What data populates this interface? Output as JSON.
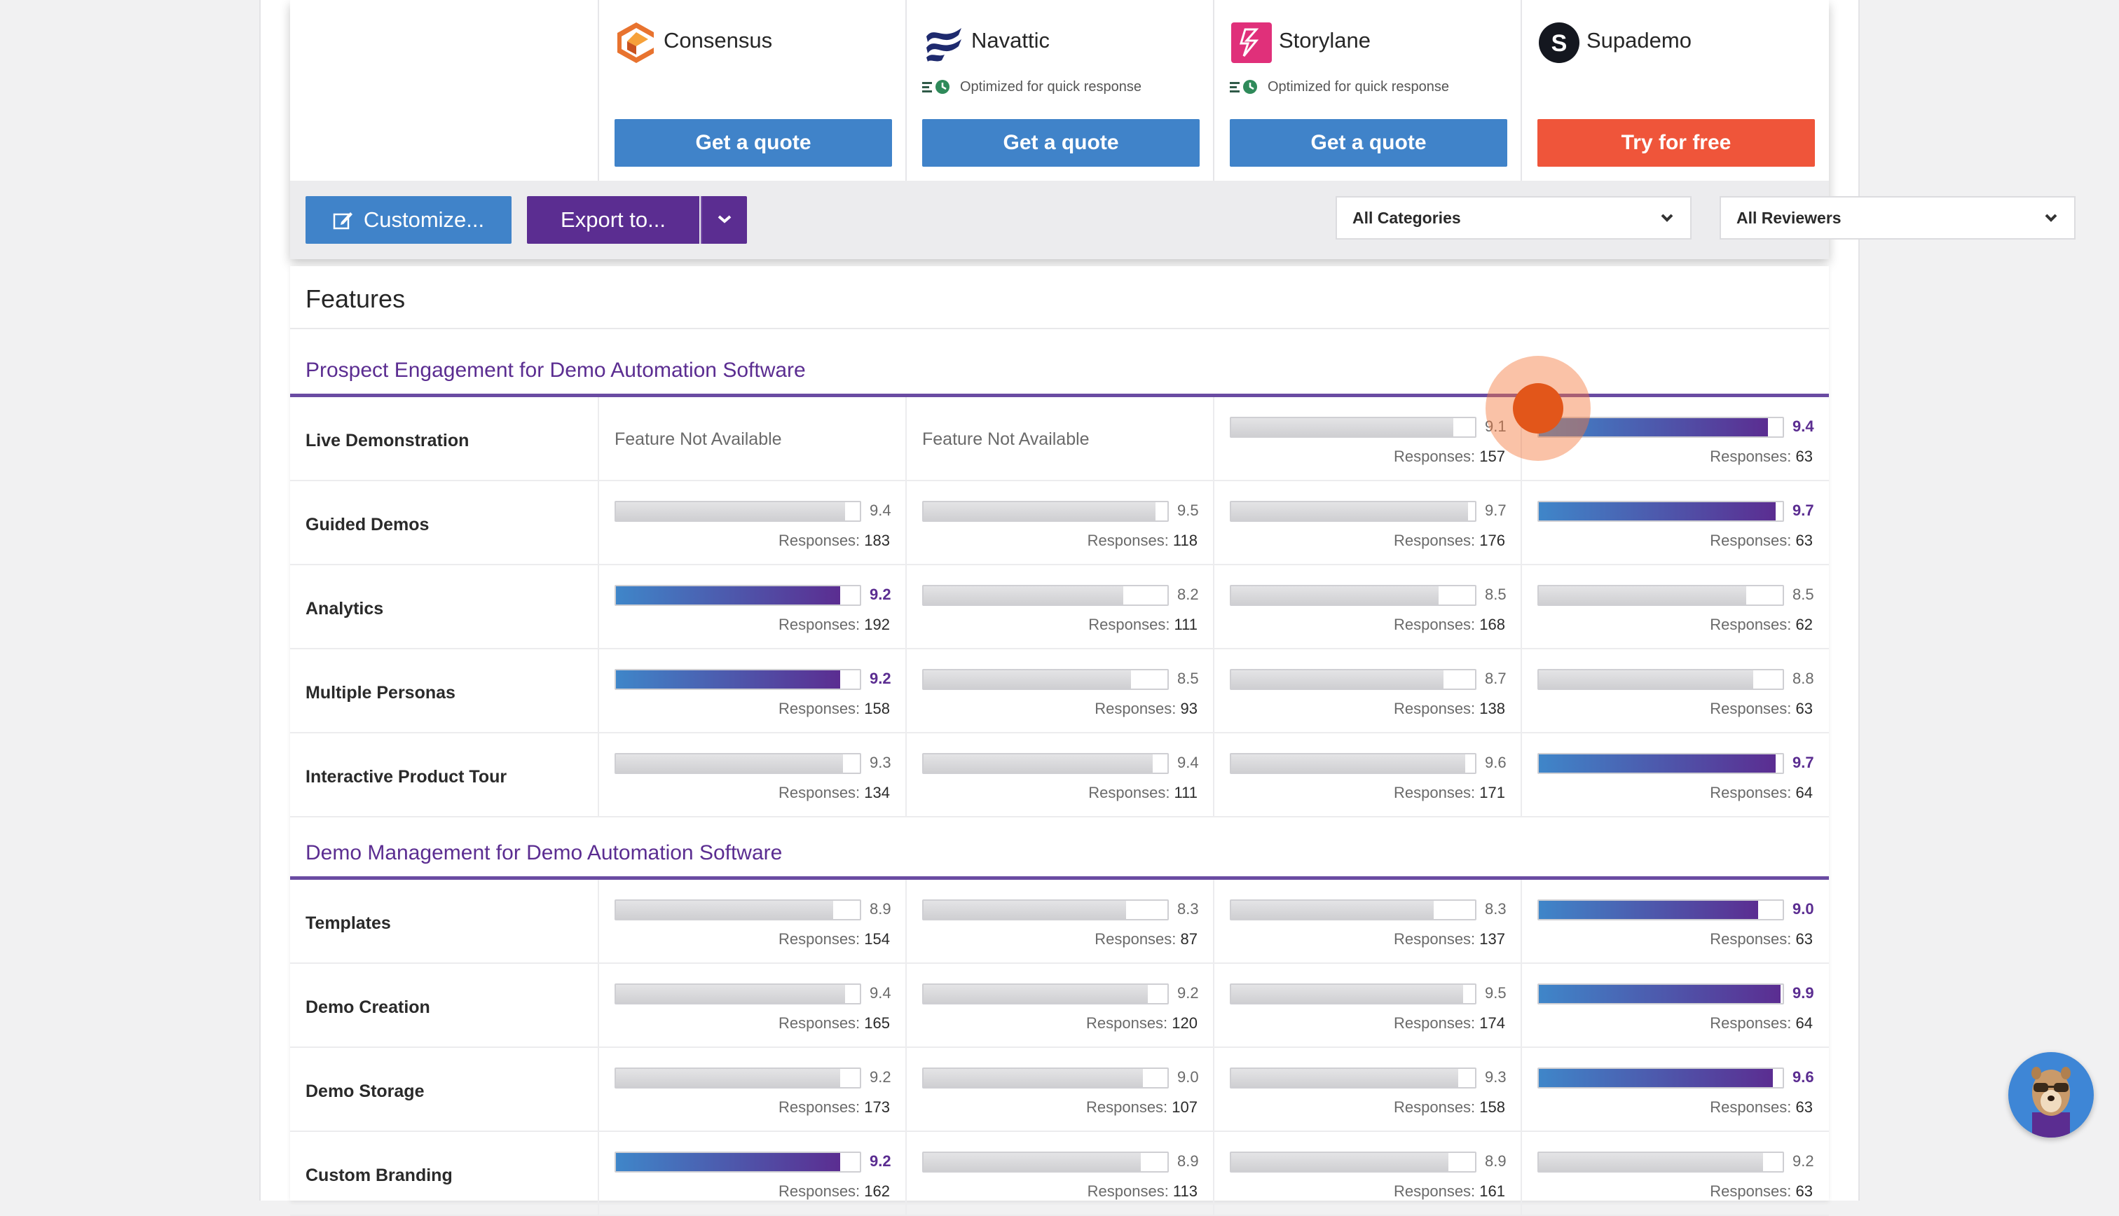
{
  "vendors": [
    {
      "name": "Consensus",
      "logo_icon": "consensus-logo-icon",
      "quick_response": "",
      "cta_label": "Get a quote",
      "cta_style": "quote"
    },
    {
      "name": "Navattic",
      "logo_icon": "navattic-logo-icon",
      "quick_response": "Optimized for quick response",
      "cta_label": "Get a quote",
      "cta_style": "quote"
    },
    {
      "name": "Storylane",
      "logo_icon": "storylane-logo-icon",
      "quick_response": "Optimized for quick response",
      "cta_label": "Get a quote",
      "cta_style": "quote"
    },
    {
      "name": "Supademo",
      "logo_icon": "supademo-logo-icon",
      "quick_response": "",
      "cta_label": "Try for free",
      "cta_style": "free"
    }
  ],
  "toolbar": {
    "customize_label": "Customize...",
    "export_label": "Export to...",
    "categories_select": "All Categories",
    "reviewers_select": "All Reviewers"
  },
  "features": {
    "title": "Features",
    "not_available_label": "Feature Not Available",
    "responses_label": "Responses:",
    "sections": [
      {
        "title": "Prospect Engagement for Demo Automation Software",
        "rows": [
          {
            "name": "Live Demonstration",
            "cells": [
              null,
              null,
              {
                "score": "9.1",
                "responses": "157"
              },
              {
                "score": "9.4",
                "responses": "63",
                "best": true
              }
            ]
          },
          {
            "name": "Guided Demos",
            "cells": [
              {
                "score": "9.4",
                "responses": "183"
              },
              {
                "score": "9.5",
                "responses": "118"
              },
              {
                "score": "9.7",
                "responses": "176"
              },
              {
                "score": "9.7",
                "responses": "63",
                "best": true
              }
            ]
          },
          {
            "name": "Analytics",
            "cells": [
              {
                "score": "9.2",
                "responses": "192",
                "best": true
              },
              {
                "score": "8.2",
                "responses": "111"
              },
              {
                "score": "8.5",
                "responses": "168"
              },
              {
                "score": "8.5",
                "responses": "62"
              }
            ]
          },
          {
            "name": "Multiple Personas",
            "cells": [
              {
                "score": "9.2",
                "responses": "158",
                "best": true
              },
              {
                "score": "8.5",
                "responses": "93"
              },
              {
                "score": "8.7",
                "responses": "138"
              },
              {
                "score": "8.8",
                "responses": "63"
              }
            ]
          },
          {
            "name": "Interactive Product Tour",
            "cells": [
              {
                "score": "9.3",
                "responses": "134"
              },
              {
                "score": "9.4",
                "responses": "111"
              },
              {
                "score": "9.6",
                "responses": "171"
              },
              {
                "score": "9.7",
                "responses": "64",
                "best": true
              }
            ]
          }
        ]
      },
      {
        "title": "Demo Management for Demo Automation Software",
        "rows": [
          {
            "name": "Templates",
            "cells": [
              {
                "score": "8.9",
                "responses": "154"
              },
              {
                "score": "8.3",
                "responses": "87"
              },
              {
                "score": "8.3",
                "responses": "137"
              },
              {
                "score": "9.0",
                "responses": "63",
                "best": true
              }
            ]
          },
          {
            "name": "Demo Creation",
            "cells": [
              {
                "score": "9.4",
                "responses": "165"
              },
              {
                "score": "9.2",
                "responses": "120"
              },
              {
                "score": "9.5",
                "responses": "174"
              },
              {
                "score": "9.9",
                "responses": "64",
                "best": true
              }
            ]
          },
          {
            "name": "Demo Storage",
            "cells": [
              {
                "score": "9.2",
                "responses": "173"
              },
              {
                "score": "9.0",
                "responses": "107"
              },
              {
                "score": "9.3",
                "responses": "158"
              },
              {
                "score": "9.6",
                "responses": "63",
                "best": true
              }
            ]
          },
          {
            "name": "Custom Branding",
            "cells": [
              {
                "score": "9.2",
                "responses": "162",
                "best": true
              },
              {
                "score": "8.9",
                "responses": "113"
              },
              {
                "score": "8.9",
                "responses": "161"
              },
              {
                "score": "9.2",
                "responses": "63"
              }
            ]
          }
        ]
      }
    ]
  },
  "colors": {
    "quote_button": "#4083c9",
    "free_button": "#ef553a",
    "export_button": "#5b2d91",
    "section_title": "#5b2d91",
    "click_marker": "#e2561a"
  },
  "chat_widget_icon": "mascot-avatar-icon"
}
